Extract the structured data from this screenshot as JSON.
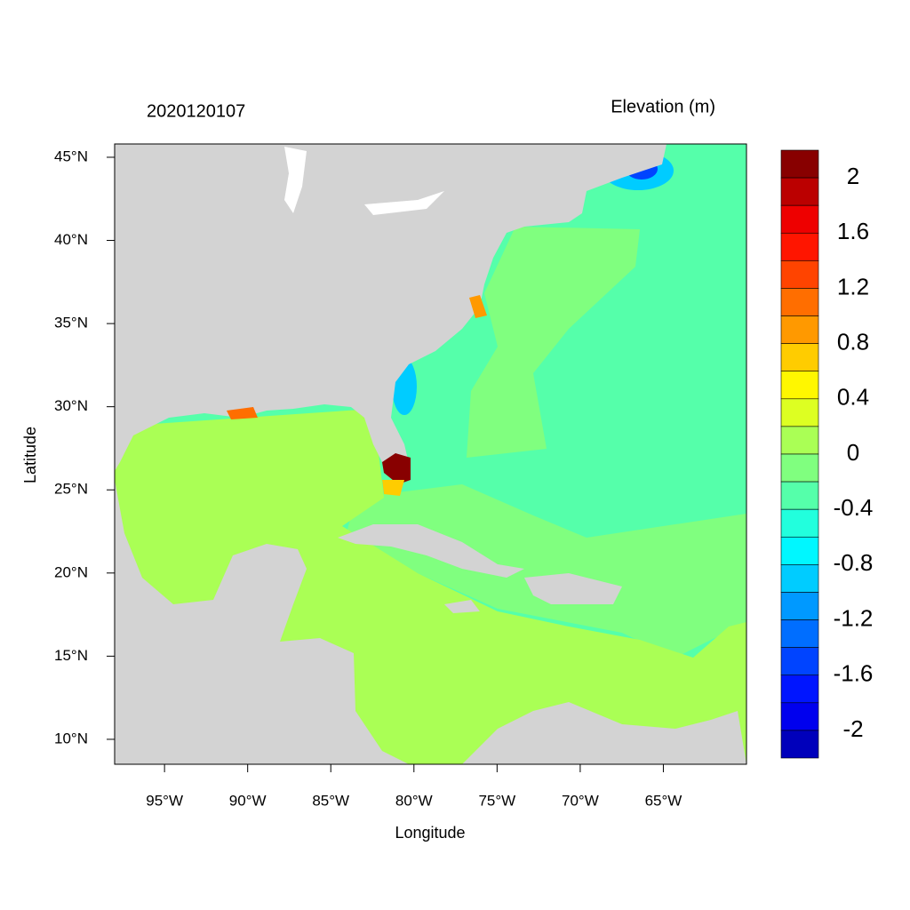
{
  "map": {
    "title_left": "2020120107",
    "title_right": "Elevation (m)",
    "xlabel": "Longitude",
    "ylabel": "Latitude",
    "xlim": [
      -98,
      -60
    ],
    "ylim": [
      8.5,
      45.8
    ],
    "xticks": [
      {
        "value": -95,
        "label": "95°W"
      },
      {
        "value": -90,
        "label": "90°W"
      },
      {
        "value": -85,
        "label": "85°W"
      },
      {
        "value": -80,
        "label": "80°W"
      },
      {
        "value": -75,
        "label": "75°W"
      },
      {
        "value": -70,
        "label": "70°W"
      },
      {
        "value": -65,
        "label": "65°W"
      }
    ],
    "yticks": [
      {
        "value": 10,
        "label": "10°N"
      },
      {
        "value": 15,
        "label": "15°N"
      },
      {
        "value": 20,
        "label": "20°N"
      },
      {
        "value": 25,
        "label": "25°N"
      },
      {
        "value": 30,
        "label": "30°N"
      },
      {
        "value": 35,
        "label": "35°N"
      },
      {
        "value": 40,
        "label": "40°N"
      },
      {
        "value": 45,
        "label": "45°N"
      }
    ],
    "colorbar": {
      "range": [
        -2.2,
        2.2
      ],
      "ticks": [
        2,
        1.6,
        1.2,
        0.8,
        0.4,
        0,
        -0.4,
        -0.8,
        -1.2,
        -1.6,
        -2
      ],
      "colors": [
        "#880000",
        "#bb0000",
        "#ee0000",
        "#ff1500",
        "#ff4400",
        "#ff6e00",
        "#ff9900",
        "#ffcc00",
        "#fff700",
        "#ddff22",
        "#aaff55",
        "#80ff7f",
        "#55ffaa",
        "#22ffdd",
        "#00f7ff",
        "#00ccff",
        "#0099ff",
        "#006eff",
        "#0044ff",
        "#0015ff",
        "#0000ee",
        "#0000bb"
      ]
    }
  }
}
